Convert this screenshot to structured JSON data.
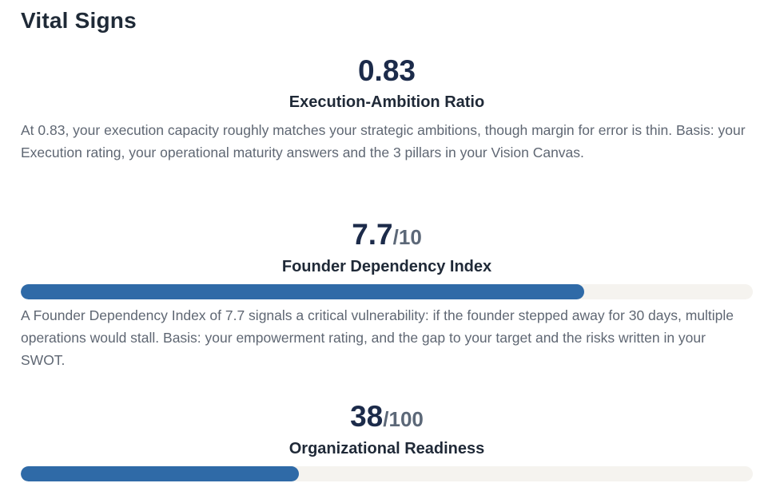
{
  "section": {
    "title": "Vital Signs"
  },
  "metrics": [
    {
      "value": "0.83",
      "suffix": "",
      "label": "Execution-Ambition Ratio",
      "description": "At 0.83, your execution capacity roughly matches your strategic ambitions, though margin for error is thin. Basis: your Execution rating, your operational maturity answers and the 3 pillars in your Vision Canvas."
    },
    {
      "value": "7.7",
      "suffix": "/10",
      "label": "Founder Dependency Index",
      "progress_fraction": 0.77,
      "progress_color": "#2f6aa7",
      "description": "A Founder Dependency Index of 7.7 signals a critical vulnerability: if the founder stepped away for 30 days, multiple operations would stall. Basis: your empowerment rating, and the gap to your target and the risks written in your SWOT."
    },
    {
      "value": "38",
      "suffix": "/100",
      "label": "Organizational Readiness",
      "progress_fraction": 0.38,
      "progress_color": "#2f6aa7"
    }
  ]
}
